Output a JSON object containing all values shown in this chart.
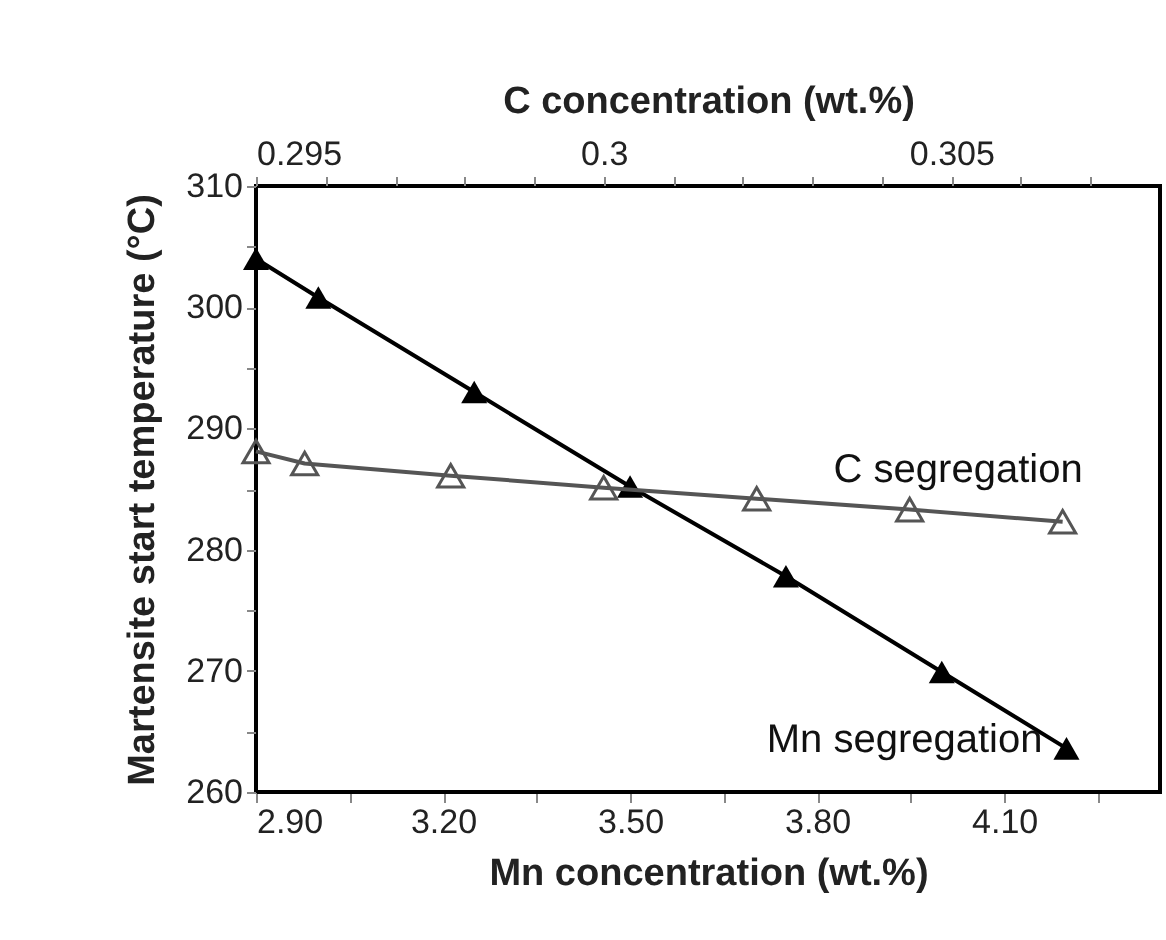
{
  "chart_data": {
    "type": "line",
    "xlabel": "Mn concentration (wt.%)",
    "x2label": "C concentration (wt.%)",
    "ylabel": "Martensite start temperature (°C)",
    "xlim": [
      2.9,
      4.35
    ],
    "xticks": [
      {
        "value": 2.9,
        "label": "2.90"
      },
      {
        "value": 3.05,
        "label": null
      },
      {
        "value": 3.2,
        "label": "3.20"
      },
      {
        "value": 3.35,
        "label": null
      },
      {
        "value": 3.5,
        "label": "3.50"
      },
      {
        "value": 3.65,
        "label": null
      },
      {
        "value": 3.8,
        "label": "3.80"
      },
      {
        "value": 3.95,
        "label": null
      },
      {
        "value": 4.1,
        "label": "4.10"
      },
      {
        "value": 4.25,
        "label": null
      }
    ],
    "x2lim": [
      0.295,
      0.308
    ],
    "x2ticks": [
      0.295,
      {
        "value": 0.296,
        "label": null
      },
      {
        "value": 0.297,
        "label": null
      },
      {
        "value": 0.298,
        "label": null
      },
      {
        "value": 0.299,
        "label": null
      },
      0.3,
      {
        "value": 0.301,
        "label": null
      },
      {
        "value": 0.302,
        "label": null
      },
      {
        "value": 0.303,
        "label": null
      },
      {
        "value": 0.304,
        "label": null
      },
      0.305,
      {
        "value": 0.306,
        "label": null
      },
      {
        "value": 0.307,
        "label": null
      }
    ],
    "ylim": [
      260,
      310
    ],
    "yticks": [
      260,
      {
        "value": 265,
        "label": null
      },
      270,
      {
        "value": 275,
        "label": null
      },
      280,
      {
        "value": 285,
        "label": null
      },
      290,
      {
        "value": 295,
        "label": null
      },
      300,
      {
        "value": 305,
        "label": null
      },
      310
    ],
    "grid": false,
    "marker": "triangle",
    "line_style": "solid",
    "series": [
      {
        "name": "Mn segregation",
        "color": "#000000",
        "x": [
          2.9,
          3.0,
          3.25,
          3.5,
          3.75,
          4.0,
          4.2
        ],
        "values": [
          304.0,
          300.8,
          293.0,
          285.2,
          277.8,
          269.9,
          263.6
        ]
      },
      {
        "name": "C segregation",
        "color": "#555555",
        "axis": "x2",
        "x": [
          0.295,
          0.2957,
          0.2978,
          0.3,
          0.3022,
          0.3044,
          0.3066
        ],
        "values": [
          288.1,
          287.1,
          286.1,
          285.1,
          284.2,
          283.3,
          282.3
        ]
      }
    ]
  }
}
